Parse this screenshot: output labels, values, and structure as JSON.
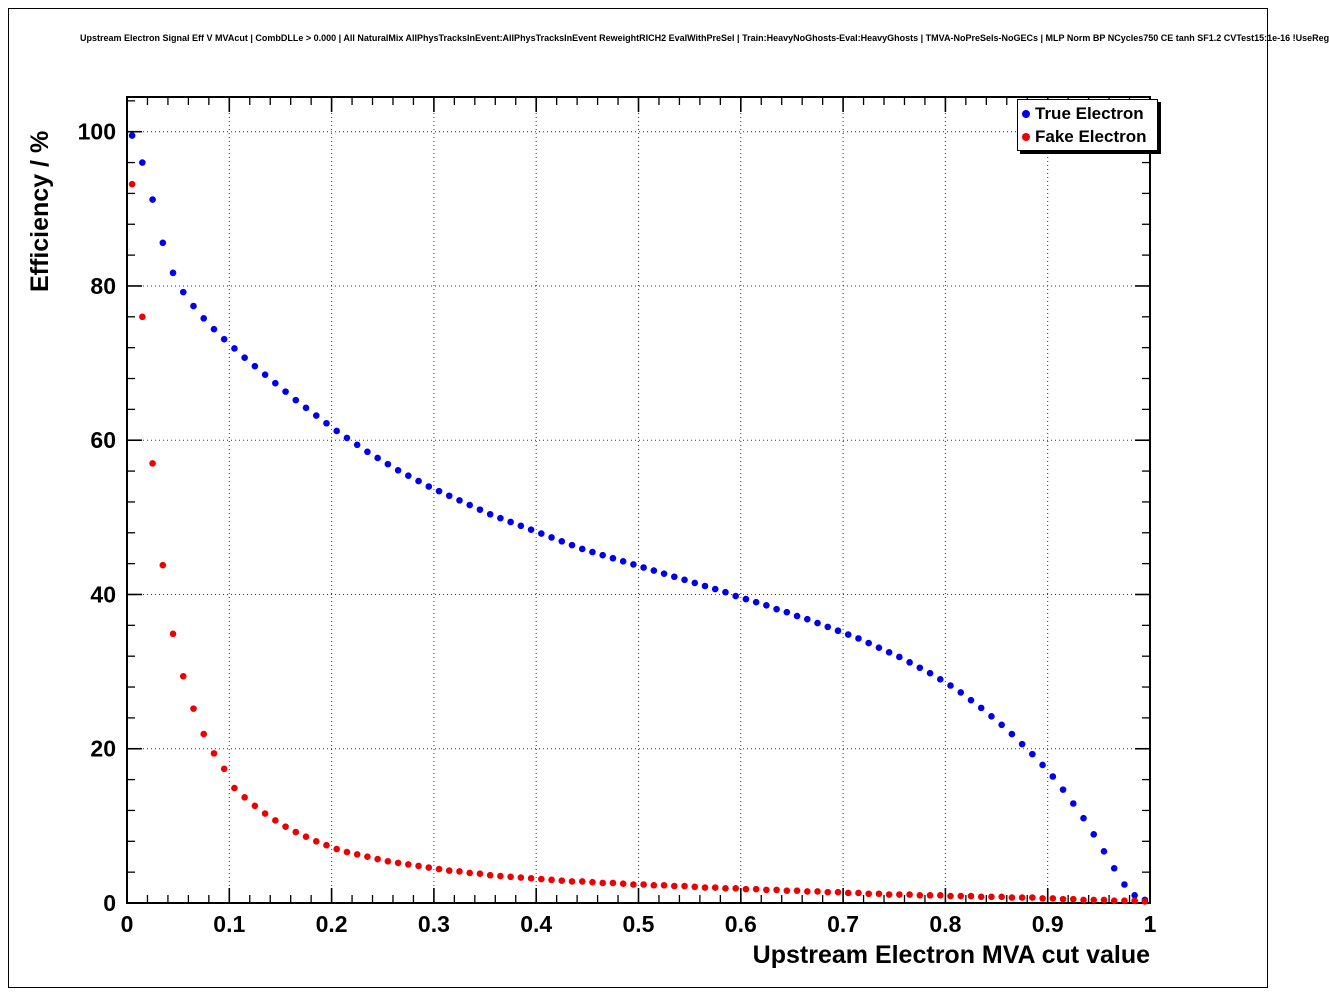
{
  "chart_data": {
    "type": "scatter",
    "title": "Upstream Electron Signal Eff V MVAcut | CombDLLe > 0.000 | All NaturalMix AllPhysTracksInEvent:AllPhysTracksInEvent ReweightRICH2 EvalWithPreSel | Train:HeavyNoGhosts-Eval:HeavyGhosts | TMVA-NoPreSels-NoGECs | MLP Norm BP NCycles750 CE tanh SF1.2 CVTest15:1e-16 !UseReg",
    "xlabel": "Upstream Electron MVA cut value",
    "ylabel": "Efficiency / %",
    "xlim": [
      0,
      1
    ],
    "ylim": [
      0,
      104.5
    ],
    "x_ticks": [
      0,
      0.1,
      0.2,
      0.3,
      0.4,
      0.5,
      0.6,
      0.7,
      0.8,
      0.9,
      1
    ],
    "x_tick_labels": [
      "0",
      "0.1",
      "0.2",
      "0.3",
      "0.4",
      "0.5",
      "0.6",
      "0.7",
      "0.8",
      "0.9",
      "1"
    ],
    "y_ticks": [
      0,
      20,
      40,
      60,
      80,
      100
    ],
    "y_tick_labels": [
      "0",
      "20",
      "40",
      "60",
      "80",
      "100"
    ],
    "x_minor_step": 0.02,
    "y_minor_step": 4,
    "grid": true,
    "grid_style": "dotted",
    "legend_position": "top-right",
    "x_start": 0.005,
    "x_step": 0.01,
    "series": [
      {
        "name": "True Electron",
        "color": "#0000ee",
        "values": [
          99.5,
          96.0,
          91.2,
          85.6,
          81.7,
          79.2,
          77.4,
          75.8,
          74.4,
          73.1,
          71.9,
          70.7,
          69.6,
          68.5,
          67.4,
          66.3,
          65.2,
          64.2,
          63.2,
          62.2,
          61.2,
          60.3,
          59.4,
          58.5,
          57.7,
          56.9,
          56.1,
          55.4,
          54.7,
          54.0,
          53.4,
          52.8,
          52.2,
          51.6,
          51.0,
          50.4,
          49.9,
          49.4,
          48.9,
          48.4,
          47.9,
          47.4,
          46.9,
          46.4,
          45.9,
          45.5,
          45.1,
          44.7,
          44.3,
          43.9,
          43.5,
          43.1,
          42.7,
          42.3,
          41.9,
          41.5,
          41.1,
          40.7,
          40.3,
          39.8,
          39.4,
          39.0,
          38.6,
          38.1,
          37.7,
          37.2,
          36.8,
          36.3,
          35.8,
          35.3,
          34.8,
          34.3,
          33.7,
          33.1,
          32.5,
          31.9,
          31.2,
          30.5,
          29.8,
          29.0,
          28.2,
          27.3,
          26.3,
          25.3,
          24.2,
          23.1,
          21.9,
          20.6,
          19.3,
          17.9,
          16.4,
          14.7,
          12.9,
          11.0,
          8.9,
          6.7,
          4.5,
          2.4,
          1.0,
          0.4
        ]
      },
      {
        "name": "Fake Electron",
        "color": "#ee0000",
        "values": [
          93.2,
          76.0,
          57.0,
          43.8,
          34.9,
          29.4,
          25.2,
          21.9,
          19.4,
          17.4,
          14.9,
          13.7,
          12.6,
          11.6,
          10.7,
          9.9,
          9.2,
          8.6,
          8.0,
          7.5,
          7.0,
          6.6,
          6.3,
          6.0,
          5.7,
          5.4,
          5.2,
          5.0,
          4.8,
          4.6,
          4.4,
          4.2,
          4.1,
          3.9,
          3.8,
          3.6,
          3.5,
          3.4,
          3.3,
          3.2,
          3.1,
          3.0,
          2.9,
          2.8,
          2.8,
          2.7,
          2.6,
          2.6,
          2.5,
          2.4,
          2.4,
          2.3,
          2.3,
          2.2,
          2.2,
          2.1,
          2.0,
          2.0,
          1.9,
          1.9,
          1.8,
          1.8,
          1.7,
          1.7,
          1.6,
          1.6,
          1.5,
          1.5,
          1.4,
          1.4,
          1.3,
          1.3,
          1.2,
          1.2,
          1.1,
          1.1,
          1.1,
          1.0,
          1.0,
          1.0,
          0.9,
          0.9,
          0.9,
          0.8,
          0.8,
          0.8,
          0.7,
          0.7,
          0.7,
          0.6,
          0.6,
          0.5,
          0.5,
          0.4,
          0.4,
          0.4,
          0.3,
          0.3,
          0.3,
          0.2
        ]
      }
    ]
  }
}
